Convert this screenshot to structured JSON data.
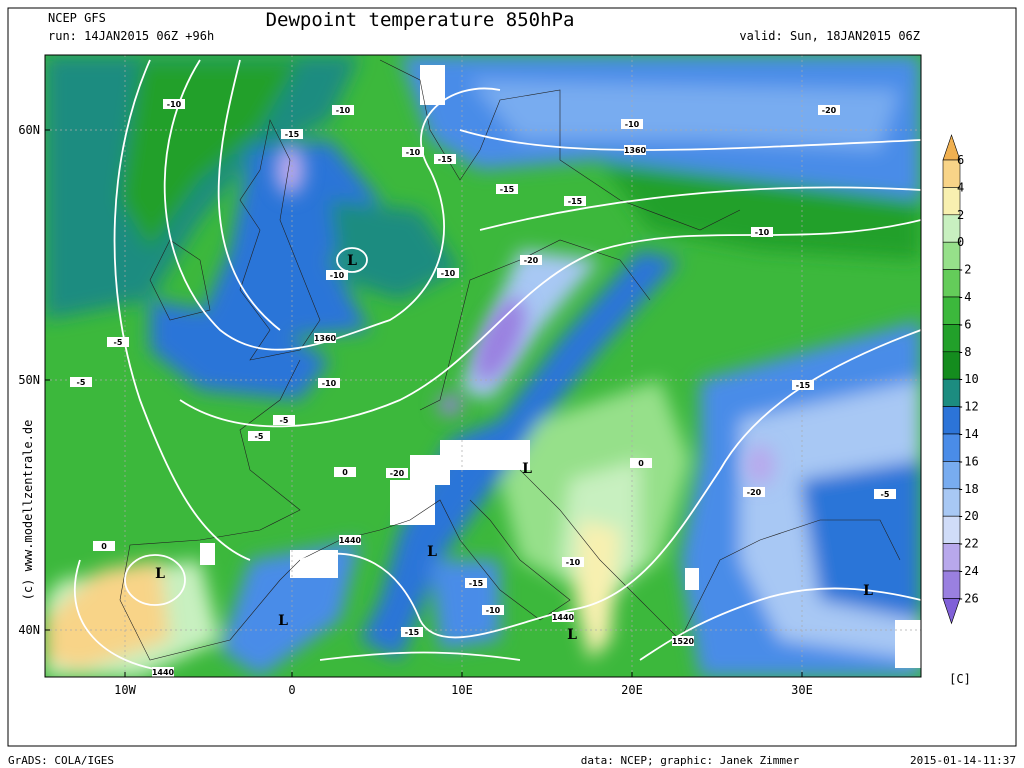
{
  "header": {
    "model": "NCEP GFS",
    "run": "run: 14JAN2015 06Z +96h",
    "title": "Dewpoint temperature 850hPa",
    "valid": "valid: Sun, 18JAN2015 06Z"
  },
  "lat_labels": [
    "60N",
    "50N",
    "40N"
  ],
  "lon_labels": [
    "10W",
    "0",
    "10E",
    "20E",
    "30E"
  ],
  "colorbar": {
    "ticks": [
      6,
      4,
      2,
      0,
      -2,
      -4,
      -6,
      -8,
      -10,
      -12,
      -14,
      -16,
      -18,
      -20,
      -22,
      -24,
      -26
    ],
    "colors": [
      "#f0b050",
      "#f8d488",
      "#f8f0b0",
      "#c8f0c0",
      "#96e08a",
      "#64cc5a",
      "#3cb83c",
      "#22a02a",
      "#148c1e",
      "#1c8c80",
      "#2c74d8",
      "#4a8ce8",
      "#78acf0",
      "#a8c8f4",
      "#d0dcf8",
      "#b8a8ec",
      "#9a80e0",
      "#8060d8"
    ],
    "unit": "[C]"
  },
  "watermark": "(c) www.modellzentrale.de",
  "contour_labels": [
    "1360",
    "1360",
    "1440",
    "1440",
    "1440",
    "1520",
    "L",
    "L",
    "L",
    "L",
    "L",
    "L",
    "L",
    "-10",
    "-10",
    "-10",
    "-10",
    "-10",
    "-10",
    "-10",
    "-10",
    "-15",
    "-15",
    "-15",
    "-15",
    "-15",
    "-20",
    "-20",
    "-20",
    "-20",
    "-5",
    "-5",
    "-5",
    "-5",
    "-5",
    "0",
    "0",
    "0",
    "-10",
    "-15",
    "-10",
    "-15"
  ],
  "footer": {
    "left": "GrADS: COLA/IGES",
    "center": "data: NCEP; graphic: Janek Zimmer",
    "right": "2015-01-14-11:37"
  }
}
